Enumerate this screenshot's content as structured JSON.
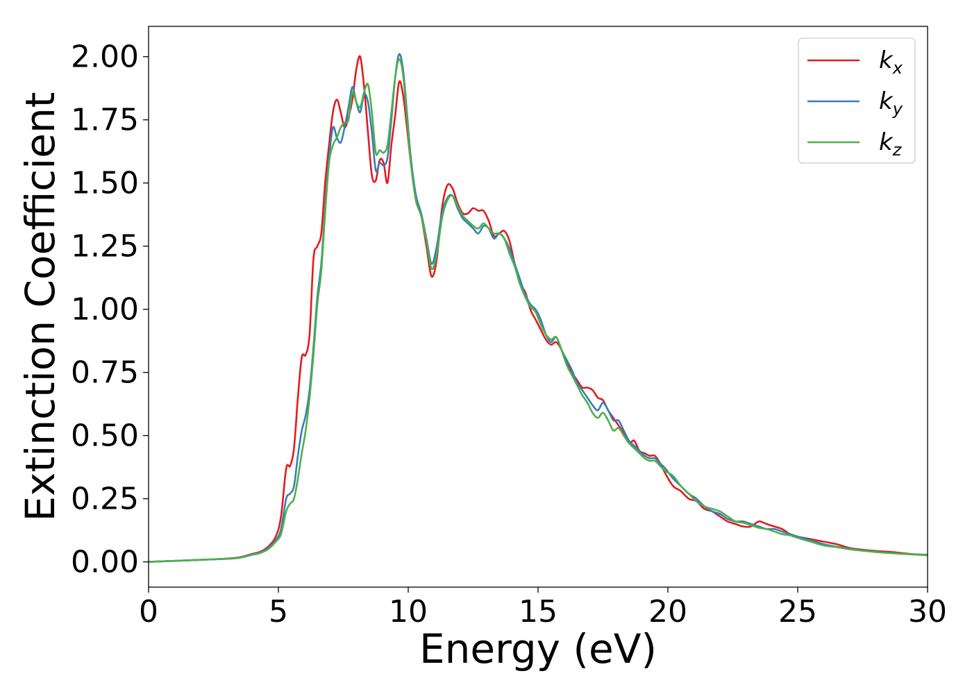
{
  "chart_data": {
    "type": "line",
    "xlabel": "Energy (eV)",
    "ylabel": "Extinction Coefficient",
    "xlim": [
      0,
      30
    ],
    "ylim": [
      -0.1,
      2.12
    ],
    "xticks": [
      0,
      5,
      10,
      15,
      20,
      25,
      30
    ],
    "xtick_labels": [
      "0",
      "5",
      "10",
      "15",
      "20",
      "25",
      "30"
    ],
    "yticks": [
      0.0,
      0.25,
      0.5,
      0.75,
      1.0,
      1.25,
      1.5,
      1.75,
      2.0
    ],
    "ytick_labels": [
      "0.00",
      "0.25",
      "0.50",
      "0.75",
      "1.00",
      "1.25",
      "1.50",
      "1.75",
      "2.00"
    ],
    "grid": false,
    "legend_position": "top-right",
    "series": [
      {
        "name": "k_x",
        "legend_base": "k",
        "legend_sub": "x",
        "color": "#e41a1c",
        "x": [
          0,
          1,
          2,
          3,
          3.5,
          4,
          4.3,
          4.6,
          4.9,
          5.1,
          5.3,
          5.45,
          5.6,
          5.75,
          5.9,
          6.05,
          6.2,
          6.35,
          6.5,
          6.65,
          6.8,
          6.95,
          7.1,
          7.25,
          7.4,
          7.55,
          7.7,
          7.85,
          8.0,
          8.15,
          8.3,
          8.45,
          8.6,
          8.75,
          8.9,
          9.05,
          9.2,
          9.35,
          9.5,
          9.65,
          9.8,
          9.95,
          10.1,
          10.3,
          10.5,
          10.7,
          10.9,
          11.1,
          11.3,
          11.5,
          11.7,
          11.9,
          12.1,
          12.3,
          12.5,
          12.7,
          12.9,
          13.1,
          13.3,
          13.5,
          13.7,
          13.9,
          14.1,
          14.3,
          14.5,
          14.7,
          14.9,
          15.1,
          15.3,
          15.5,
          15.7,
          15.9,
          16.1,
          16.3,
          16.5,
          16.7,
          16.9,
          17.1,
          17.3,
          17.5,
          17.7,
          17.9,
          18.1,
          18.3,
          18.5,
          18.7,
          18.9,
          19.1,
          19.3,
          19.5,
          19.7,
          19.9,
          20.2,
          20.5,
          20.8,
          21.1,
          21.4,
          21.7,
          22.0,
          22.3,
          22.6,
          22.9,
          23.2,
          23.5,
          23.8,
          24.1,
          24.4,
          24.7,
          25.0,
          25.5,
          26.0,
          26.5,
          27.0,
          27.5,
          28.0,
          28.5,
          29.0,
          29.5,
          30.0
        ],
        "values": [
          0.0,
          0.004,
          0.008,
          0.013,
          0.018,
          0.032,
          0.04,
          0.06,
          0.1,
          0.18,
          0.37,
          0.38,
          0.45,
          0.65,
          0.81,
          0.82,
          0.9,
          1.2,
          1.25,
          1.3,
          1.5,
          1.65,
          1.78,
          1.83,
          1.78,
          1.72,
          1.76,
          1.83,
          1.95,
          2.0,
          1.88,
          1.7,
          1.53,
          1.51,
          1.59,
          1.58,
          1.5,
          1.65,
          1.77,
          1.9,
          1.85,
          1.72,
          1.58,
          1.43,
          1.37,
          1.25,
          1.13,
          1.2,
          1.4,
          1.49,
          1.48,
          1.42,
          1.38,
          1.38,
          1.4,
          1.39,
          1.39,
          1.35,
          1.29,
          1.3,
          1.31,
          1.27,
          1.18,
          1.1,
          1.07,
          1.0,
          0.96,
          0.92,
          0.88,
          0.86,
          0.87,
          0.84,
          0.79,
          0.75,
          0.72,
          0.69,
          0.69,
          0.68,
          0.65,
          0.64,
          0.6,
          0.57,
          0.54,
          0.51,
          0.47,
          0.48,
          0.44,
          0.43,
          0.42,
          0.42,
          0.39,
          0.35,
          0.3,
          0.28,
          0.25,
          0.24,
          0.21,
          0.2,
          0.18,
          0.16,
          0.15,
          0.14,
          0.14,
          0.16,
          0.15,
          0.14,
          0.13,
          0.11,
          0.1,
          0.09,
          0.08,
          0.07,
          0.055,
          0.048,
          0.043,
          0.04,
          0.035,
          0.03,
          0.028
        ]
      },
      {
        "name": "k_y",
        "legend_base": "k",
        "legend_sub": "y",
        "color": "#377eb8",
        "x": [
          0,
          1,
          2,
          3,
          3.5,
          4,
          4.3,
          4.6,
          4.9,
          5.1,
          5.3,
          5.45,
          5.6,
          5.75,
          5.9,
          6.05,
          6.2,
          6.35,
          6.5,
          6.65,
          6.8,
          6.95,
          7.1,
          7.25,
          7.4,
          7.55,
          7.7,
          7.85,
          8.0,
          8.15,
          8.3,
          8.45,
          8.6,
          8.75,
          8.9,
          9.05,
          9.2,
          9.35,
          9.5,
          9.65,
          9.8,
          9.95,
          10.1,
          10.3,
          10.5,
          10.7,
          10.9,
          11.1,
          11.3,
          11.5,
          11.7,
          11.9,
          12.1,
          12.3,
          12.5,
          12.7,
          12.9,
          13.1,
          13.3,
          13.5,
          13.7,
          13.9,
          14.1,
          14.3,
          14.5,
          14.7,
          14.9,
          15.1,
          15.3,
          15.5,
          15.7,
          15.9,
          16.1,
          16.3,
          16.5,
          16.7,
          16.9,
          17.1,
          17.3,
          17.5,
          17.7,
          17.9,
          18.1,
          18.3,
          18.5,
          18.7,
          18.9,
          19.1,
          19.3,
          19.5,
          19.7,
          19.9,
          20.2,
          20.5,
          20.8,
          21.1,
          21.4,
          21.7,
          22.0,
          22.3,
          22.6,
          22.9,
          23.2,
          23.5,
          23.8,
          24.1,
          24.4,
          24.7,
          25.0,
          25.5,
          26.0,
          26.5,
          27.0,
          27.5,
          28.0,
          28.5,
          29.0,
          29.5,
          30.0
        ],
        "values": [
          0.0,
          0.004,
          0.008,
          0.012,
          0.017,
          0.03,
          0.037,
          0.055,
          0.085,
          0.13,
          0.25,
          0.27,
          0.3,
          0.42,
          0.52,
          0.58,
          0.68,
          0.85,
          1.05,
          1.18,
          1.4,
          1.6,
          1.72,
          1.68,
          1.66,
          1.72,
          1.8,
          1.88,
          1.82,
          1.78,
          1.85,
          1.82,
          1.7,
          1.55,
          1.58,
          1.57,
          1.6,
          1.75,
          1.92,
          2.01,
          1.95,
          1.78,
          1.6,
          1.45,
          1.38,
          1.28,
          1.18,
          1.25,
          1.38,
          1.44,
          1.45,
          1.4,
          1.36,
          1.34,
          1.32,
          1.3,
          1.33,
          1.32,
          1.28,
          1.3,
          1.28,
          1.24,
          1.18,
          1.12,
          1.06,
          1.02,
          1.0,
          0.96,
          0.9,
          0.87,
          0.89,
          0.84,
          0.8,
          0.76,
          0.71,
          0.68,
          0.65,
          0.62,
          0.6,
          0.63,
          0.6,
          0.56,
          0.56,
          0.52,
          0.48,
          0.46,
          0.44,
          0.42,
          0.41,
          0.41,
          0.39,
          0.37,
          0.33,
          0.3,
          0.27,
          0.25,
          0.22,
          0.2,
          0.19,
          0.17,
          0.16,
          0.16,
          0.15,
          0.14,
          0.13,
          0.13,
          0.12,
          0.11,
          0.1,
          0.085,
          0.07,
          0.06,
          0.052,
          0.045,
          0.04,
          0.036,
          0.032,
          0.03,
          0.027
        ]
      },
      {
        "name": "k_z",
        "legend_base": "k",
        "legend_sub": "z",
        "color": "#4daf4a",
        "x": [
          0,
          1,
          2,
          3,
          3.5,
          4,
          4.3,
          4.6,
          4.9,
          5.1,
          5.3,
          5.45,
          5.6,
          5.75,
          5.9,
          6.05,
          6.2,
          6.35,
          6.5,
          6.65,
          6.8,
          6.95,
          7.1,
          7.25,
          7.4,
          7.55,
          7.7,
          7.85,
          8.0,
          8.15,
          8.3,
          8.45,
          8.6,
          8.75,
          8.9,
          9.05,
          9.2,
          9.35,
          9.5,
          9.65,
          9.8,
          9.95,
          10.1,
          10.3,
          10.5,
          10.7,
          10.9,
          11.1,
          11.3,
          11.5,
          11.7,
          11.9,
          12.1,
          12.3,
          12.5,
          12.7,
          12.9,
          13.1,
          13.3,
          13.5,
          13.7,
          13.9,
          14.1,
          14.3,
          14.5,
          14.7,
          14.9,
          15.1,
          15.3,
          15.5,
          15.7,
          15.9,
          16.1,
          16.3,
          16.5,
          16.7,
          16.9,
          17.1,
          17.3,
          17.5,
          17.7,
          17.9,
          18.1,
          18.3,
          18.5,
          18.7,
          18.9,
          19.1,
          19.3,
          19.5,
          19.7,
          19.9,
          20.2,
          20.5,
          20.8,
          21.1,
          21.4,
          21.7,
          22.0,
          22.3,
          22.6,
          22.9,
          23.2,
          23.5,
          23.8,
          24.1,
          24.4,
          24.7,
          25.0,
          25.5,
          26.0,
          26.5,
          27.0,
          27.5,
          28.0,
          28.5,
          29.0,
          29.5,
          30.0
        ],
        "values": [
          0.0,
          0.004,
          0.008,
          0.012,
          0.016,
          0.028,
          0.035,
          0.05,
          0.08,
          0.11,
          0.2,
          0.23,
          0.25,
          0.33,
          0.43,
          0.52,
          0.65,
          0.82,
          1.02,
          1.15,
          1.38,
          1.58,
          1.65,
          1.68,
          1.72,
          1.74,
          1.75,
          1.86,
          1.82,
          1.8,
          1.86,
          1.89,
          1.78,
          1.62,
          1.63,
          1.62,
          1.65,
          1.78,
          1.92,
          1.99,
          1.93,
          1.76,
          1.58,
          1.43,
          1.37,
          1.27,
          1.16,
          1.22,
          1.36,
          1.43,
          1.45,
          1.41,
          1.37,
          1.35,
          1.33,
          1.32,
          1.34,
          1.32,
          1.3,
          1.3,
          1.28,
          1.22,
          1.17,
          1.1,
          1.05,
          1.01,
          0.99,
          0.94,
          0.9,
          0.88,
          0.89,
          0.84,
          0.78,
          0.74,
          0.7,
          0.66,
          0.63,
          0.59,
          0.57,
          0.59,
          0.56,
          0.52,
          0.53,
          0.5,
          0.47,
          0.45,
          0.43,
          0.41,
          0.4,
          0.4,
          0.38,
          0.36,
          0.34,
          0.3,
          0.27,
          0.24,
          0.22,
          0.21,
          0.2,
          0.18,
          0.16,
          0.155,
          0.145,
          0.135,
          0.13,
          0.12,
          0.11,
          0.105,
          0.095,
          0.08,
          0.065,
          0.058,
          0.05,
          0.044,
          0.039,
          0.035,
          0.032,
          0.029,
          0.026
        ]
      }
    ]
  }
}
